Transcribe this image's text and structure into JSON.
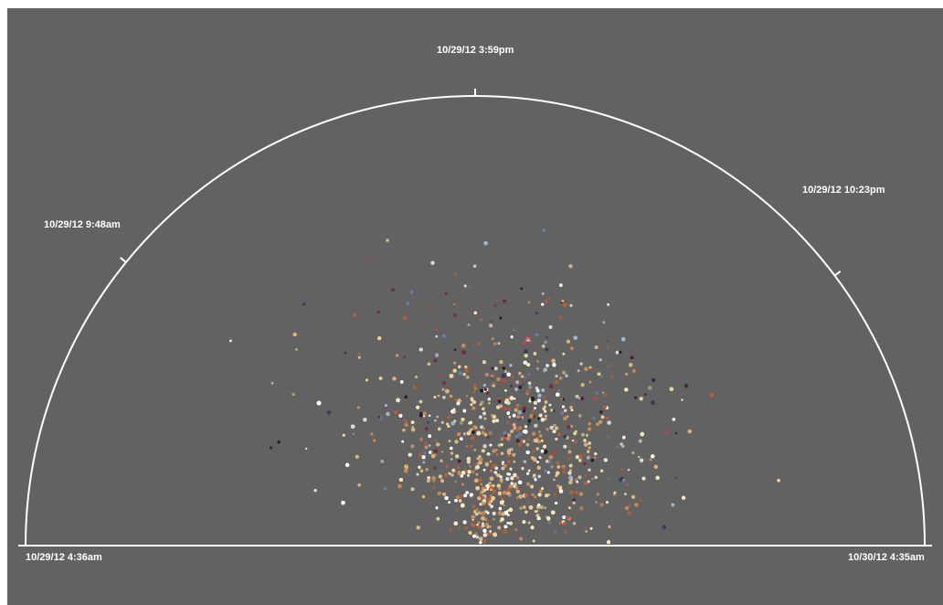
{
  "chart_data": {
    "type": "scatter",
    "layout": "semicircular-radial",
    "title": "",
    "time_axis": {
      "start": "10/29/12 4:36am",
      "end": "10/30/12 4:35am",
      "ticks": [
        {
          "label": "10/29/12 4:36am",
          "angle_fraction": 0.0
        },
        {
          "label": "10/29/12 9:48am",
          "angle_fraction": 0.217
        },
        {
          "label": "10/29/12 3:59pm",
          "angle_fraction": 0.5
        },
        {
          "label": "10/29/12 10:23pm",
          "angle_fraction": 0.795
        },
        {
          "label": "10/30/12 4:35am",
          "angle_fraction": 1.0
        }
      ]
    },
    "point_density": [
      {
        "time_fraction": 0.15,
        "relative_count": 0.05
      },
      {
        "time_fraction": 0.3,
        "relative_count": 0.2
      },
      {
        "time_fraction": 0.45,
        "relative_count": 0.55
      },
      {
        "time_fraction": 0.55,
        "relative_count": 0.9
      },
      {
        "time_fraction": 0.7,
        "relative_count": 0.75
      },
      {
        "time_fraction": 0.85,
        "relative_count": 0.35
      }
    ],
    "colors": {
      "background": "#626262",
      "arc": "#ffffff",
      "palette_center": [
        "#f2e6c2",
        "#e8d29a",
        "#d9b37a",
        "#ffffff",
        "#c98a5a",
        "#b5603a"
      ],
      "palette_outer": [
        "#2a1a22",
        "#4a2030",
        "#7a2a3a",
        "#c2434f",
        "#3a3a5a",
        "#6a7ea8",
        "#9fb6d2",
        "#d8d8d8"
      ]
    }
  }
}
